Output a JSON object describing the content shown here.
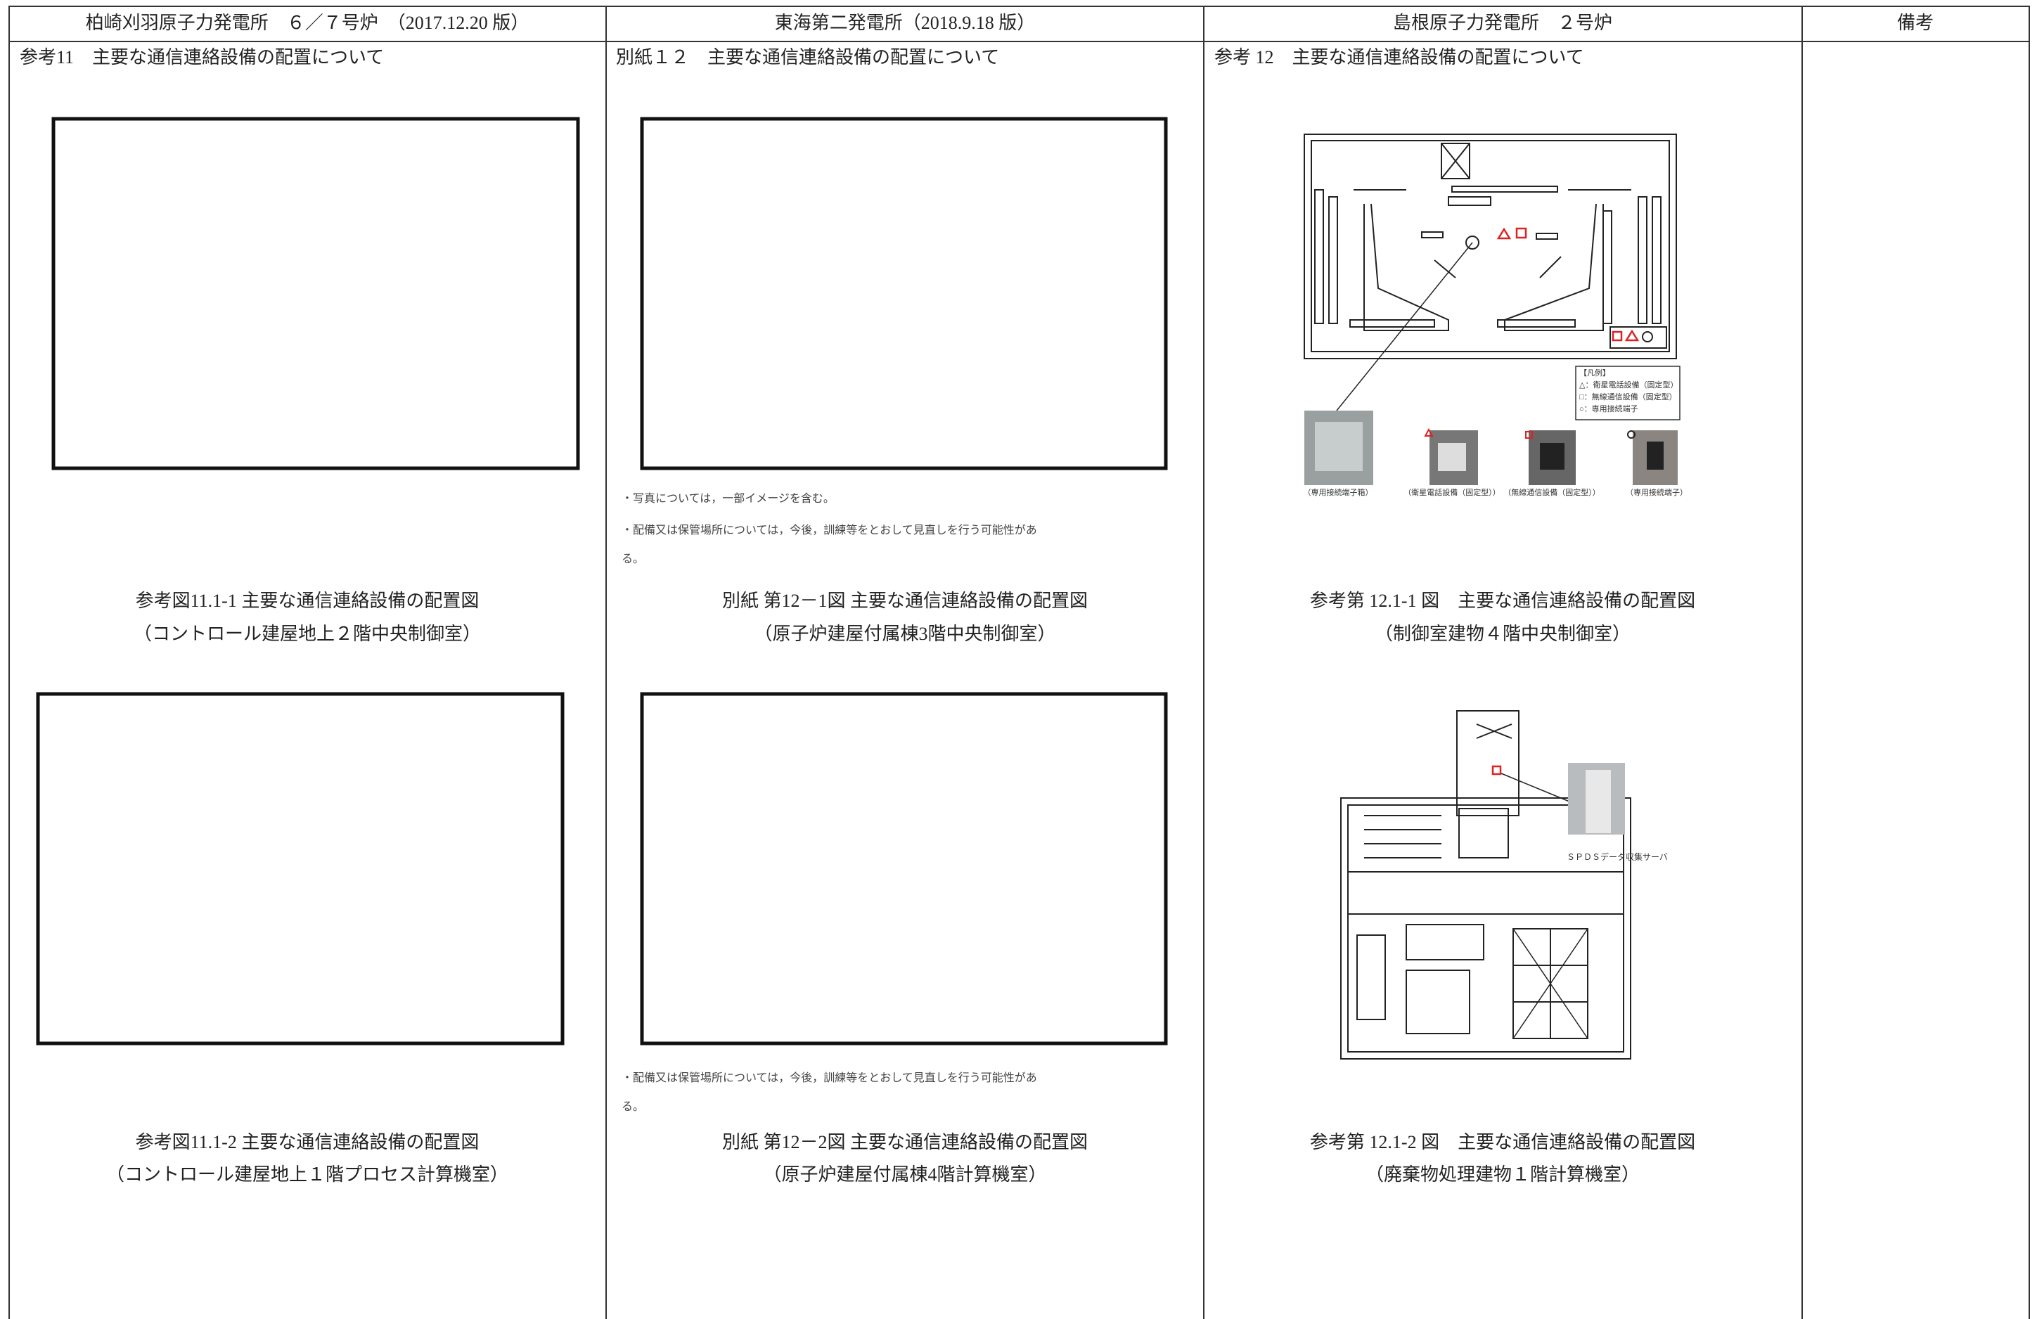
{
  "table": {
    "headers": [
      "柏崎刈羽原子力発電所　６／７号炉　（2017.12.20 版）",
      "東海第二発電所（2018.9.18 版）",
      "島根原子力発電所　２号炉",
      "備考"
    ],
    "columns": [
      {
        "heading": "参考11　主要な通信連絡設備の配置について",
        "figures": [
          {
            "caption": [
              "参考図11.1-1 主要な通信連絡設備の配置図",
              "（コントロール建屋地上２階中央制御室）"
            ]
          },
          {
            "caption": [
              "参考図11.1-2 主要な通信連絡設備の配置図",
              "（コントロール建屋地上１階プロセス計算機室）"
            ]
          }
        ]
      },
      {
        "heading": "別紙１２　主要な通信連絡設備の配置について",
        "figures": [
          {
            "notes": [
              "・写真については，一部イメージを含む。",
              "・配備又は保管場所については，今後，訓練等をとおして見直しを行う可能性があ",
              "る。"
            ],
            "caption": [
              "別紙 第12－1図 主要な通信連絡設備の配置図",
              "（原子炉建屋付属棟3階中央制御室）"
            ]
          },
          {
            "notes": [
              "・配備又は保管場所については，今後，訓練等をとおして見直しを行う可能性があ",
              "る。"
            ],
            "caption": [
              "別紙 第12－2図 主要な通信連絡設備の配置図",
              "（原子炉建屋付属棟4階計算機室）"
            ]
          }
        ]
      },
      {
        "heading": "参考 12　主要な通信連絡設備の配置について",
        "figures": [
          {
            "legend": [
              "【凡例】",
              "△：衛星電話設備（固定型）",
              "□：無線通信設備（固定型）",
              "○：専用接続端子"
            ],
            "photo_labels": [
              "（専用接続端子箱）",
              "（衛星電話設備（固定型））",
              "（無線通信設備（固定型））",
              "（専用接続端子）"
            ],
            "caption": [
              "参考第 12.1-1 図　主要な通信連絡設備の配置図",
              "（制御室建物４階中央制御室）"
            ]
          },
          {
            "photo_label": "ＳＰＤＳデータ収集サーバ",
            "caption": [
              "参考第 12.1-2 図　主要な通信連絡設備の配置図",
              "（廃棄物処理建物１階計算機室）"
            ]
          }
        ]
      }
    ]
  }
}
